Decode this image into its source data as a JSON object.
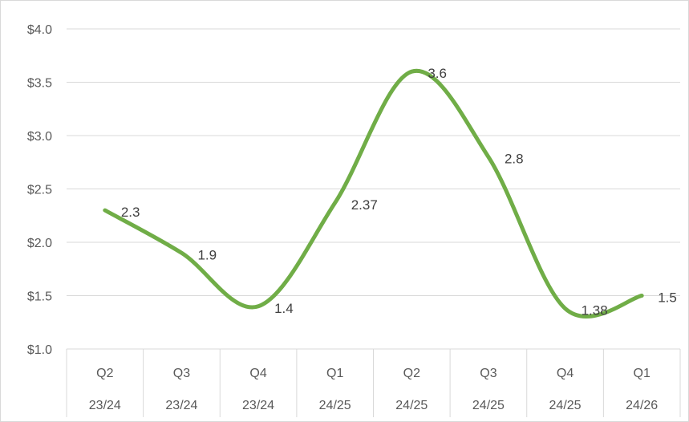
{
  "chart_data": {
    "type": "line",
    "title": "",
    "xlabel": "",
    "ylabel": "",
    "categories": [
      [
        "Q2",
        "23/24"
      ],
      [
        "Q3",
        "23/24"
      ],
      [
        "Q4",
        "23/24"
      ],
      [
        "Q1",
        "24/25"
      ],
      [
        "Q2",
        "24/25"
      ],
      [
        "Q3",
        "24/25"
      ],
      [
        "Q4",
        "24/25"
      ],
      [
        "Q1",
        "24/26"
      ]
    ],
    "series": [
      {
        "values": [
          2.3,
          1.9,
          1.4,
          2.37,
          3.6,
          2.8,
          1.38,
          1.5
        ]
      }
    ],
    "data_labels": [
      "2.3",
      "1.9",
      "1.4",
      "2.37",
      "3.6",
      "2.8",
      "1.38",
      "1.5"
    ],
    "smooth": true,
    "ylim": [
      1.0,
      4.0
    ],
    "yticks": [
      1.0,
      1.5,
      2.0,
      2.5,
      3.0,
      3.5,
      4.0
    ],
    "ytick_labels": [
      "$1.0",
      "$1.5",
      "$2.0",
      "$2.5",
      "$3.0",
      "$3.5",
      "$4.0"
    ],
    "grid": "horizontal",
    "legend": "none",
    "colors": {
      "line": "#70ad47",
      "grid": "#d9d9d9",
      "text": "#595959"
    }
  }
}
